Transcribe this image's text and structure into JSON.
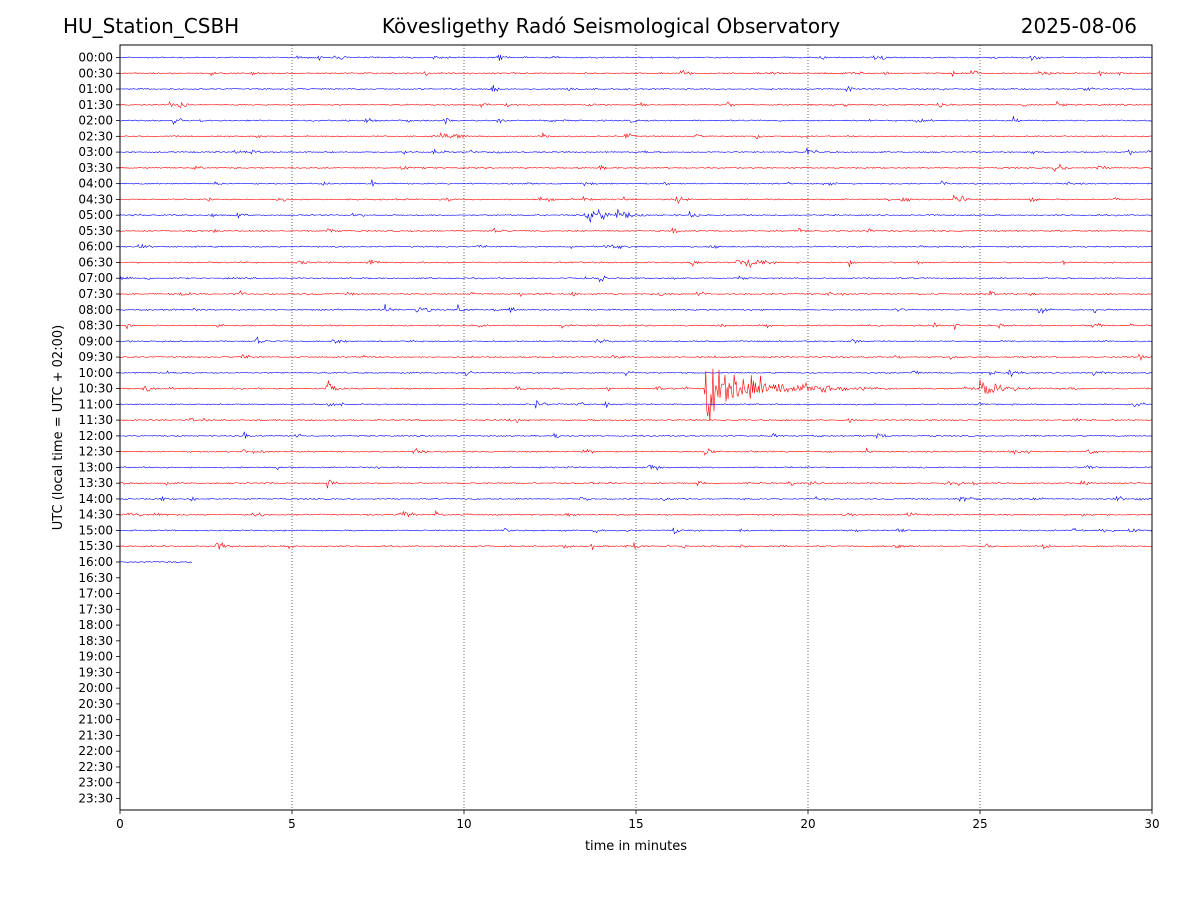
{
  "header": {
    "station": "HU_Station_CSBH",
    "observatory": "Kövesligethy Radó Seismological Observatory",
    "date": "2025-08-06"
  },
  "chart_data": {
    "type": "line",
    "title": "Kövesligethy Radó Seismological Observatory",
    "xlabel": "time in minutes",
    "ylabel": "UTC (local time = UTC + 02:00)",
    "xlim": [
      0,
      30
    ],
    "x_ticks": [
      0,
      5,
      10,
      15,
      20,
      25,
      30
    ],
    "grid_x": [
      5,
      10,
      15,
      20,
      25
    ],
    "row_labels": [
      "00:00",
      "00:30",
      "01:00",
      "01:30",
      "02:00",
      "02:30",
      "03:00",
      "03:30",
      "04:00",
      "04:30",
      "05:00",
      "05:30",
      "06:00",
      "06:30",
      "07:00",
      "07:30",
      "08:00",
      "08:30",
      "09:00",
      "09:30",
      "10:00",
      "10:30",
      "11:00",
      "11:30",
      "12:00",
      "12:30",
      "13:00",
      "13:30",
      "14:00",
      "14:30",
      "15:00",
      "15:30",
      "16:00",
      "16:30",
      "17:00",
      "17:30",
      "18:00",
      "18:30",
      "19:00",
      "19:30",
      "20:00",
      "20:30",
      "21:00",
      "21:30",
      "22:00",
      "22:30",
      "23:00",
      "23:30"
    ],
    "colors": {
      "even_rows": "#0000ff",
      "odd_rows": "#ff0000"
    },
    "recorded_rows": 33,
    "last_row_end_minute": 2.1,
    "events": [
      {
        "row": "05:00",
        "minute": 13.5,
        "amplitude": 2.2,
        "duration_min": 2.0
      },
      {
        "row": "06:30",
        "minute": 18.2,
        "amplitude": 1.3,
        "duration_min": 1.2
      },
      {
        "row": "10:30",
        "minute": 17.0,
        "amplitude": 6.0,
        "duration_min": 5.5
      },
      {
        "row": "10:30",
        "minute": 25.0,
        "amplitude": 2.0,
        "duration_min": 2.0
      },
      {
        "row": "10:30",
        "minute": 6.0,
        "amplitude": 1.5,
        "duration_min": 0.8
      },
      {
        "row": "08:00",
        "minute": 7.7,
        "amplitude": 1.0,
        "duration_min": 0.4
      },
      {
        "row": "08:00",
        "minute": 9.8,
        "amplitude": 1.0,
        "duration_min": 0.8
      },
      {
        "row": "08:00",
        "minute": 11.3,
        "amplitude": 0.9,
        "duration_min": 0.4
      },
      {
        "row": "04:30",
        "minute": 24.4,
        "amplitude": 1.1,
        "duration_min": 0.3
      },
      {
        "row": "04:00",
        "minute": 7.3,
        "amplitude": 0.9,
        "duration_min": 0.3
      },
      {
        "row": "03:00",
        "minute": 29.3,
        "amplitude": 0.9,
        "duration_min": 0.4
      },
      {
        "row": "07:00",
        "minute": 0.7,
        "amplitude": 0.9,
        "duration_min": 0.3
      },
      {
        "row": "12:30",
        "minute": 17.0,
        "amplitude": 1.5,
        "duration_min": 0.5
      }
    ]
  }
}
